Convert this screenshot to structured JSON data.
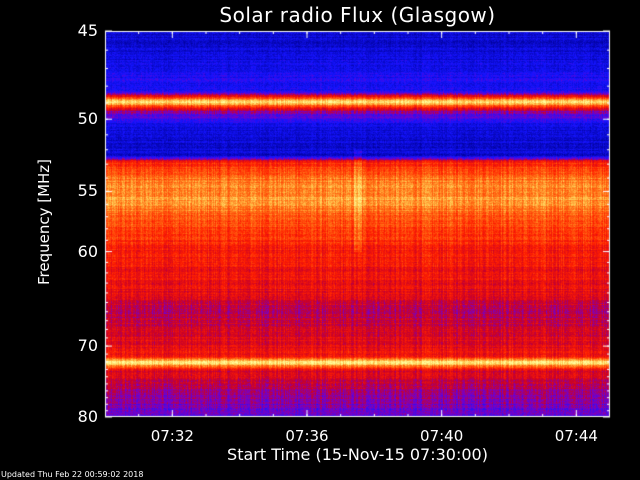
{
  "chart_data": {
    "type": "heatmap",
    "title": "Solar radio Flux (Glasgow)",
    "xlabel": "Start Time (15-Nov-15 07:30:00)",
    "ylabel": "Frequency [MHz]",
    "x_range_minutes": [
      0,
      15
    ],
    "x_ticks": [
      {
        "label": "07:32",
        "minute": 2
      },
      {
        "label": "07:36",
        "minute": 6
      },
      {
        "label": "07:40",
        "minute": 10
      },
      {
        "label": "07:44",
        "minute": 14
      }
    ],
    "y_range_mhz": [
      45,
      80
    ],
    "y_ticks": [
      45,
      50,
      55,
      60,
      70,
      80
    ],
    "y_axis_scale": "reciprocal",
    "colormap": "blue-purple-red-yellow",
    "intensity_profile_mhz": [
      {
        "mhz": 45,
        "level": 0.1
      },
      {
        "mhz": 46.4,
        "level": 0.12
      },
      {
        "mhz": 48.3,
        "level": 0.2
      },
      {
        "mhz": 48.9,
        "level": 0.95
      },
      {
        "mhz": 49.5,
        "level": 0.35
      },
      {
        "mhz": 50.5,
        "level": 0.1
      },
      {
        "mhz": 52.4,
        "level": 0.1
      },
      {
        "mhz": 52.8,
        "level": 0.6
      },
      {
        "mhz": 54.0,
        "level": 0.75
      },
      {
        "mhz": 55.5,
        "level": 0.82
      },
      {
        "mhz": 57.5,
        "level": 0.68
      },
      {
        "mhz": 60.0,
        "level": 0.58
      },
      {
        "mhz": 64.0,
        "level": 0.52
      },
      {
        "mhz": 66.0,
        "level": 0.4
      },
      {
        "mhz": 68.0,
        "level": 0.48
      },
      {
        "mhz": 71.2,
        "level": 0.55
      },
      {
        "mhz": 72.0,
        "level": 1.0
      },
      {
        "mhz": 73.0,
        "level": 0.5
      },
      {
        "mhz": 76.0,
        "level": 0.4
      },
      {
        "mhz": 78.0,
        "level": 0.32
      },
      {
        "mhz": 80.0,
        "level": 0.28
      }
    ],
    "burst_minute": 7.5
  },
  "footer": "Updated Thu Feb 22 00:59:02 2018",
  "colors": {
    "background": "#000000",
    "foreground": "#ffffff"
  }
}
